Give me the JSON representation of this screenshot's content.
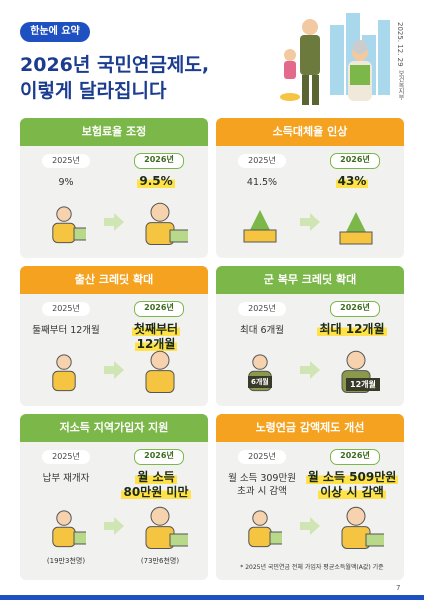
{
  "header": {
    "badge": "한눈에 요약",
    "title": [
      "2026년 국민연금제도,",
      "이렇게 달라집니다"
    ],
    "date": "2025. 12. 29",
    "ministry": "보건복지부"
  },
  "cards": [
    {
      "title": "보험료율 조정",
      "color": "#7cb749",
      "before": {
        "year": "2025년",
        "text": [
          "9%"
        ]
      },
      "after": {
        "year": "2026년",
        "text": [
          "9.5%"
        ]
      }
    },
    {
      "title": "소득대체율 인상",
      "color": "#f4a21f",
      "before": {
        "year": "2025년",
        "text": [
          "41.5%"
        ]
      },
      "after": {
        "year": "2026년",
        "text": [
          "43%"
        ]
      }
    },
    {
      "title": "출산 크레딧 확대",
      "color": "#f4a21f",
      "before": {
        "year": "2025년",
        "text": [
          "둘째부터 12개월"
        ]
      },
      "after": {
        "year": "2026년",
        "text": [
          "첫째부터",
          "12개월"
        ]
      }
    },
    {
      "title": "군 복무 크레딧 확대",
      "color": "#7cb749",
      "before": {
        "year": "2025년",
        "text": [
          "최대 6개월"
        ],
        "icon_label": "6개월"
      },
      "after": {
        "year": "2026년",
        "text": [
          "최대 12개월"
        ],
        "icon_label": "12개월"
      }
    },
    {
      "title": "저소득 지역가입자 지원",
      "color": "#7cb749",
      "before": {
        "year": "2025년",
        "text": [
          "납부 재개자"
        ],
        "note": "(19만3천명)"
      },
      "after": {
        "year": "2026년",
        "text": [
          "월 소득",
          "80만원 미만"
        ],
        "note": "(73만6천명)"
      }
    },
    {
      "title": "노령연금 감액제도 개선",
      "color": "#f4a21f",
      "before": {
        "year": "2025년",
        "text": [
          "월 소득 309만원",
          "초과 시 감액"
        ]
      },
      "after": {
        "year": "2026년",
        "text": [
          "월 소득 509만원",
          "이상 시 감액"
        ]
      },
      "footnote": "* 2025년 국민연금 전체 가입자 평균소득월액(A값) 기준"
    }
  ],
  "page_number": "7"
}
